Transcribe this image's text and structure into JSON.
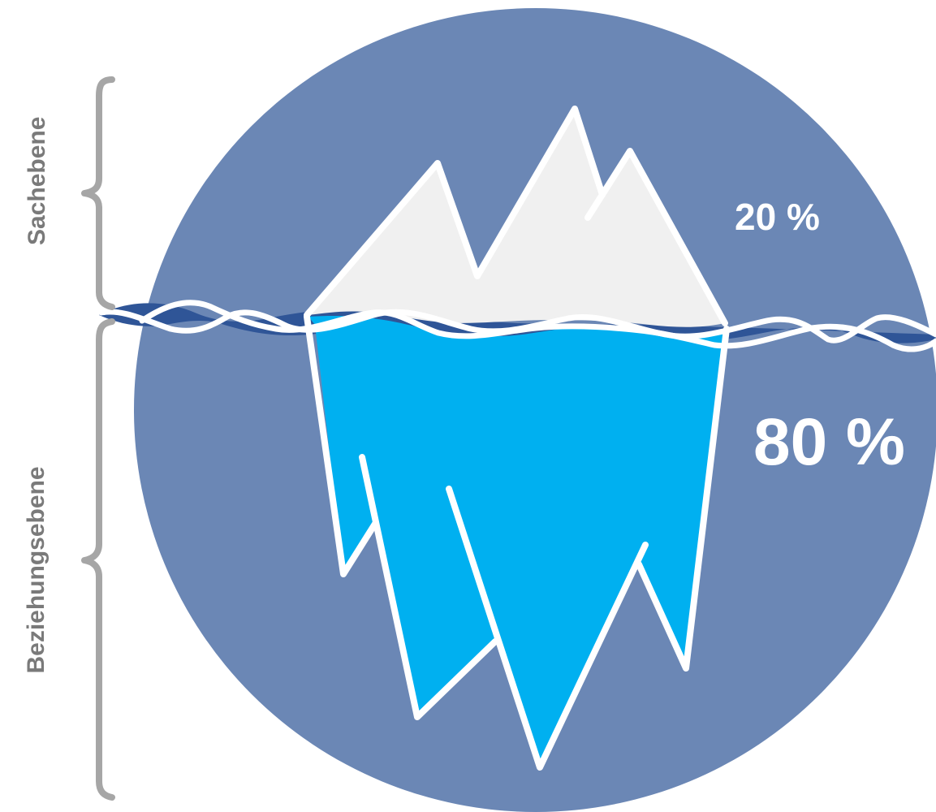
{
  "labels": {
    "above": "Sachebene",
    "below": "Beziehungsebene"
  },
  "percentages": {
    "above": "20 %",
    "below": "80 %"
  },
  "colors": {
    "circle": "#6b87b5",
    "underwater": "#00b0f0",
    "above_water": "#f0f0f0",
    "water_line": "#2f5597",
    "outline": "#ffffff",
    "brace": "#a6a6a6",
    "label_text": "#7a7a7a"
  }
}
